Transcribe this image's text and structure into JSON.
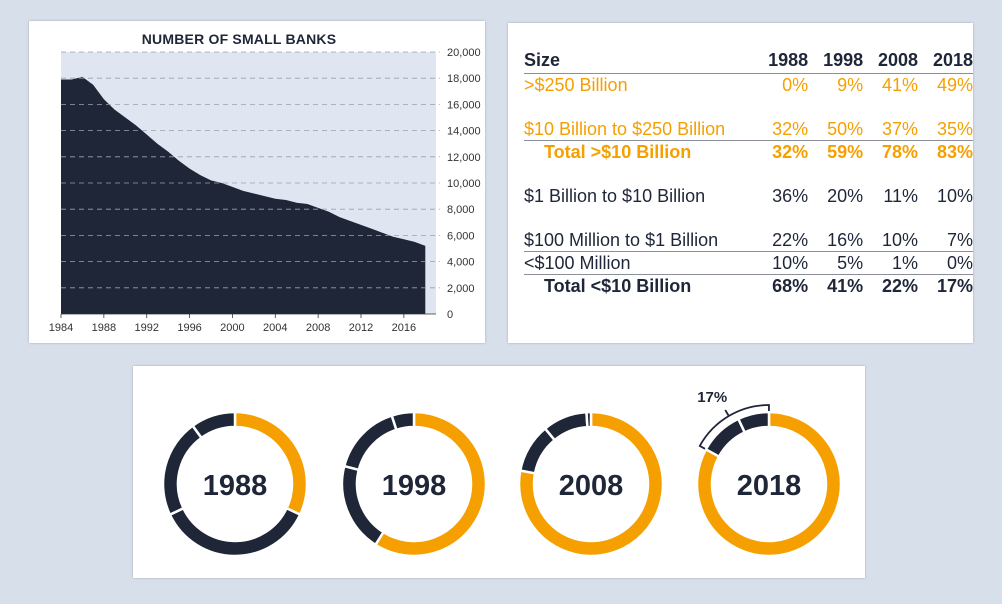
{
  "colors": {
    "navy": "#1e2638",
    "orange": "#f5a000",
    "fill_bg": "#dfe6f2",
    "grid": "#9aa1ad"
  },
  "chart_data": [
    {
      "type": "area",
      "title": "NUMBER OF SMALL BANKS",
      "x": [
        1984,
        1985,
        1986,
        1987,
        1988,
        1989,
        1990,
        1991,
        1992,
        1993,
        1994,
        1995,
        1996,
        1997,
        1998,
        1999,
        2000,
        2001,
        2002,
        2003,
        2004,
        2005,
        2006,
        2007,
        2008,
        2009,
        2010,
        2011,
        2012,
        2013,
        2014,
        2015,
        2016,
        2017,
        2018
      ],
      "values": [
        17900,
        17900,
        18100,
        17500,
        16400,
        15600,
        15000,
        14400,
        13700,
        13000,
        12400,
        11700,
        11100,
        10600,
        10200,
        10000,
        9700,
        9400,
        9200,
        9000,
        8800,
        8700,
        8500,
        8400,
        8100,
        7800,
        7400,
        7100,
        6800,
        6500,
        6200,
        5900,
        5700,
        5500,
        5200
      ],
      "xticks": [
        "1984",
        "1988",
        "1992",
        "1996",
        "2000",
        "2004",
        "2008",
        "2012",
        "2016"
      ],
      "yticks": [
        "0",
        "2,000",
        "4,000",
        "6,000",
        "8,000",
        "10,000",
        "12,000",
        "14,000",
        "16,000",
        "18,000",
        "20,000"
      ],
      "ylim": [
        0,
        20000
      ],
      "xlim": [
        1984,
        2019
      ],
      "grid": "horizontal dashed",
      "y_axis_side": "right"
    },
    {
      "type": "table",
      "columns": [
        "Size",
        "1988",
        "1998",
        "2008",
        "2018"
      ],
      "rows": [
        {
          "label": ">$250 Billion",
          "values": [
            "0%",
            "9%",
            "41%",
            "49%"
          ],
          "style": "orange"
        },
        {
          "label": "$10 Billion to $250 Billion",
          "values": [
            "32%",
            "50%",
            "37%",
            "35%"
          ],
          "style": "orange"
        },
        {
          "label": "Total >$10 Billion",
          "values": [
            "32%",
            "59%",
            "78%",
            "83%"
          ],
          "style": "orange-total"
        },
        {
          "label": "$1 Billion to $10 Billion",
          "values": [
            "36%",
            "20%",
            "11%",
            "10%"
          ],
          "style": "normal"
        },
        {
          "label": "$100 Million to $1 Billion",
          "values": [
            "22%",
            "16%",
            "10%",
            "7%"
          ],
          "style": "normal"
        },
        {
          "label": "<$100 Million",
          "values": [
            "10%",
            "5%",
            "1%",
            "0%"
          ],
          "style": "normal"
        },
        {
          "label": "Total <$10 Billion",
          "values": [
            "68%",
            "41%",
            "22%",
            "17%"
          ],
          "style": "total"
        }
      ]
    },
    {
      "type": "pie",
      "variant": "donut",
      "charts": [
        {
          "label": "1988",
          "values": [
            32,
            36,
            22,
            10
          ]
        },
        {
          "label": "1998",
          "values": [
            59,
            20,
            16,
            5
          ]
        },
        {
          "label": "2008",
          "values": [
            78,
            11,
            10,
            1
          ]
        },
        {
          "label": "2018",
          "values": [
            83,
            10,
            7,
            0
          ]
        }
      ],
      "slice_colors": [
        "orange",
        "navy",
        "navy",
        "navy"
      ],
      "annotation": "17%"
    }
  ]
}
